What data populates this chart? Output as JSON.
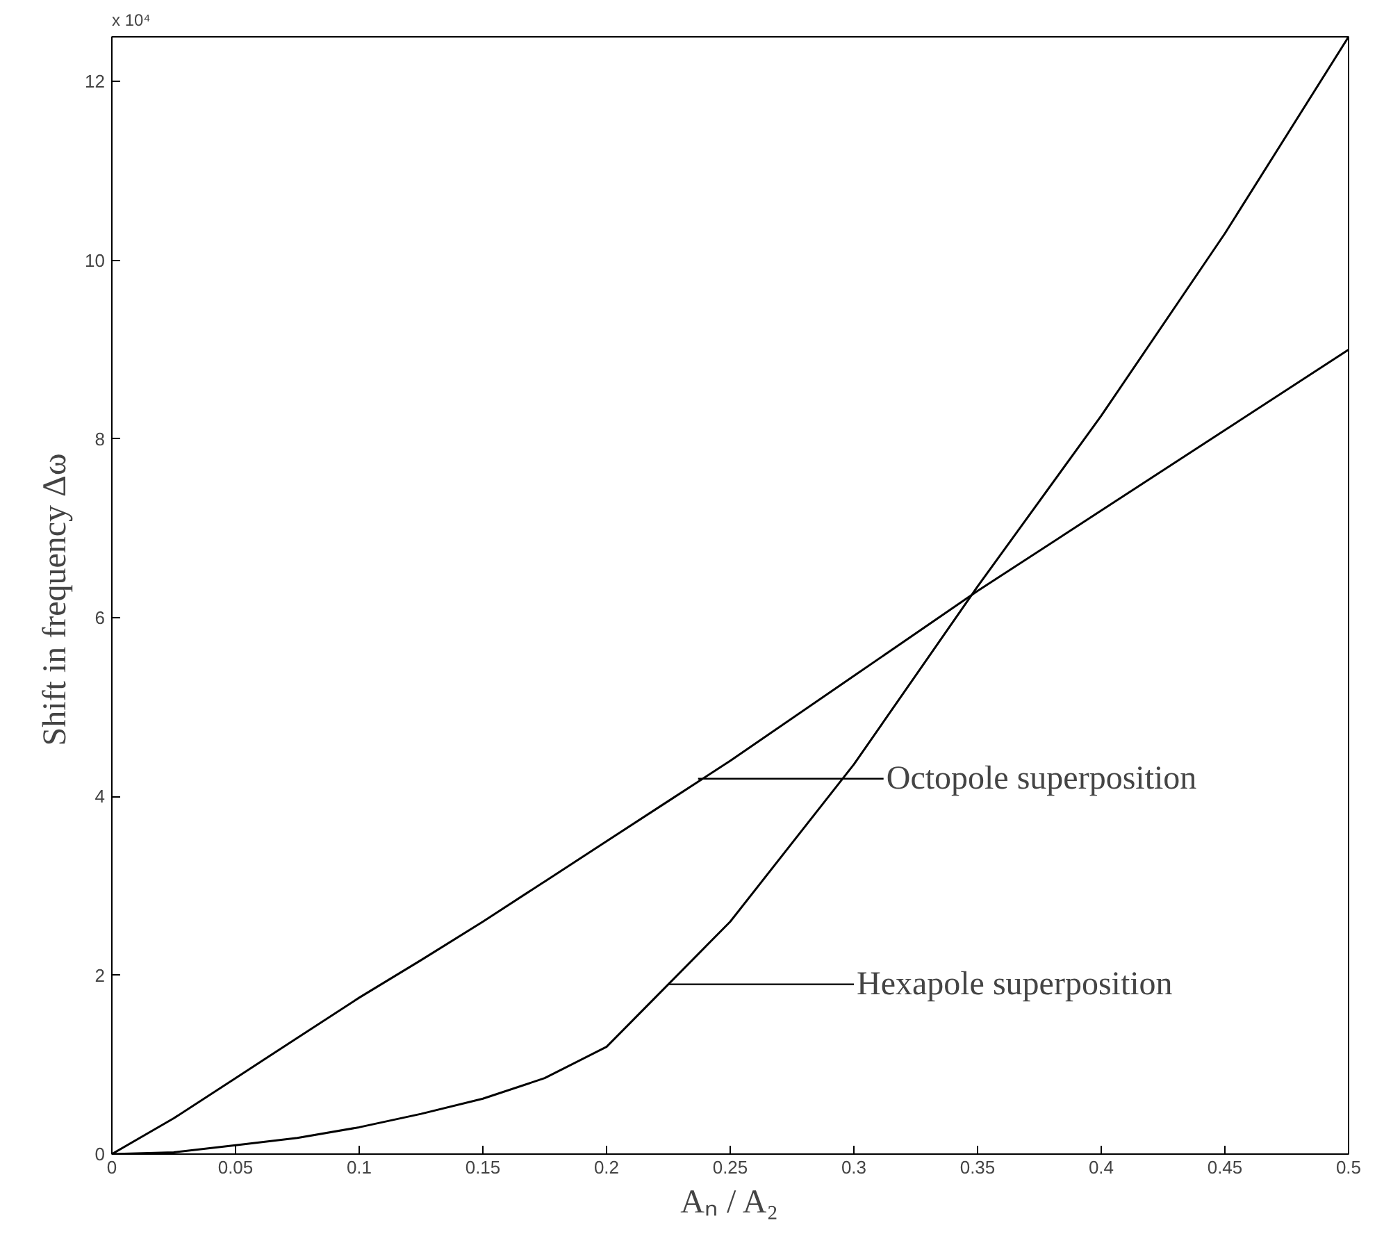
{
  "chart_data": {
    "type": "line",
    "xlabel": "Aₙ / A₂",
    "ylabel": "Shift in frequency  Δω",
    "x": [
      0,
      0.025,
      0.05,
      0.075,
      0.1,
      0.125,
      0.15,
      0.175,
      0.2,
      0.225,
      0.25,
      0.3,
      0.35,
      0.4,
      0.45,
      0.5
    ],
    "series": [
      {
        "color": "#000000",
        "values": [
          0,
          0.4,
          0.85,
          1.3,
          1.75,
          2.17,
          2.6,
          3.05,
          3.5,
          3.95,
          4.4,
          5.35,
          6.3,
          7.2,
          8.1,
          9.0
        ]
      },
      {
        "color": "#000000",
        "values": [
          0,
          0.02,
          0.1,
          0.18,
          0.3,
          0.45,
          0.62,
          0.85,
          1.2,
          1.9,
          2.6,
          4.36,
          6.35,
          8.26,
          10.3,
          12.5
        ]
      }
    ],
    "xlim": [
      0,
      0.5
    ],
    "ylim": [
      0,
      12.5
    ],
    "xticks": [
      0,
      0.05,
      0.1,
      0.15,
      0.2,
      0.25,
      0.3,
      0.35,
      0.4,
      0.45,
      0.5
    ],
    "yticks": [
      0,
      2,
      4,
      6,
      8,
      10,
      12
    ],
    "annotations": [
      "x 10⁴",
      {
        "text": "Octopole superposition",
        "x": 0.237,
        "y": 4.2
      },
      {
        "text": "Hexapole superposition",
        "x": 0.225,
        "y": 1.9
      }
    ],
    "grid": false,
    "marker": "none",
    "line_style": "solid"
  }
}
